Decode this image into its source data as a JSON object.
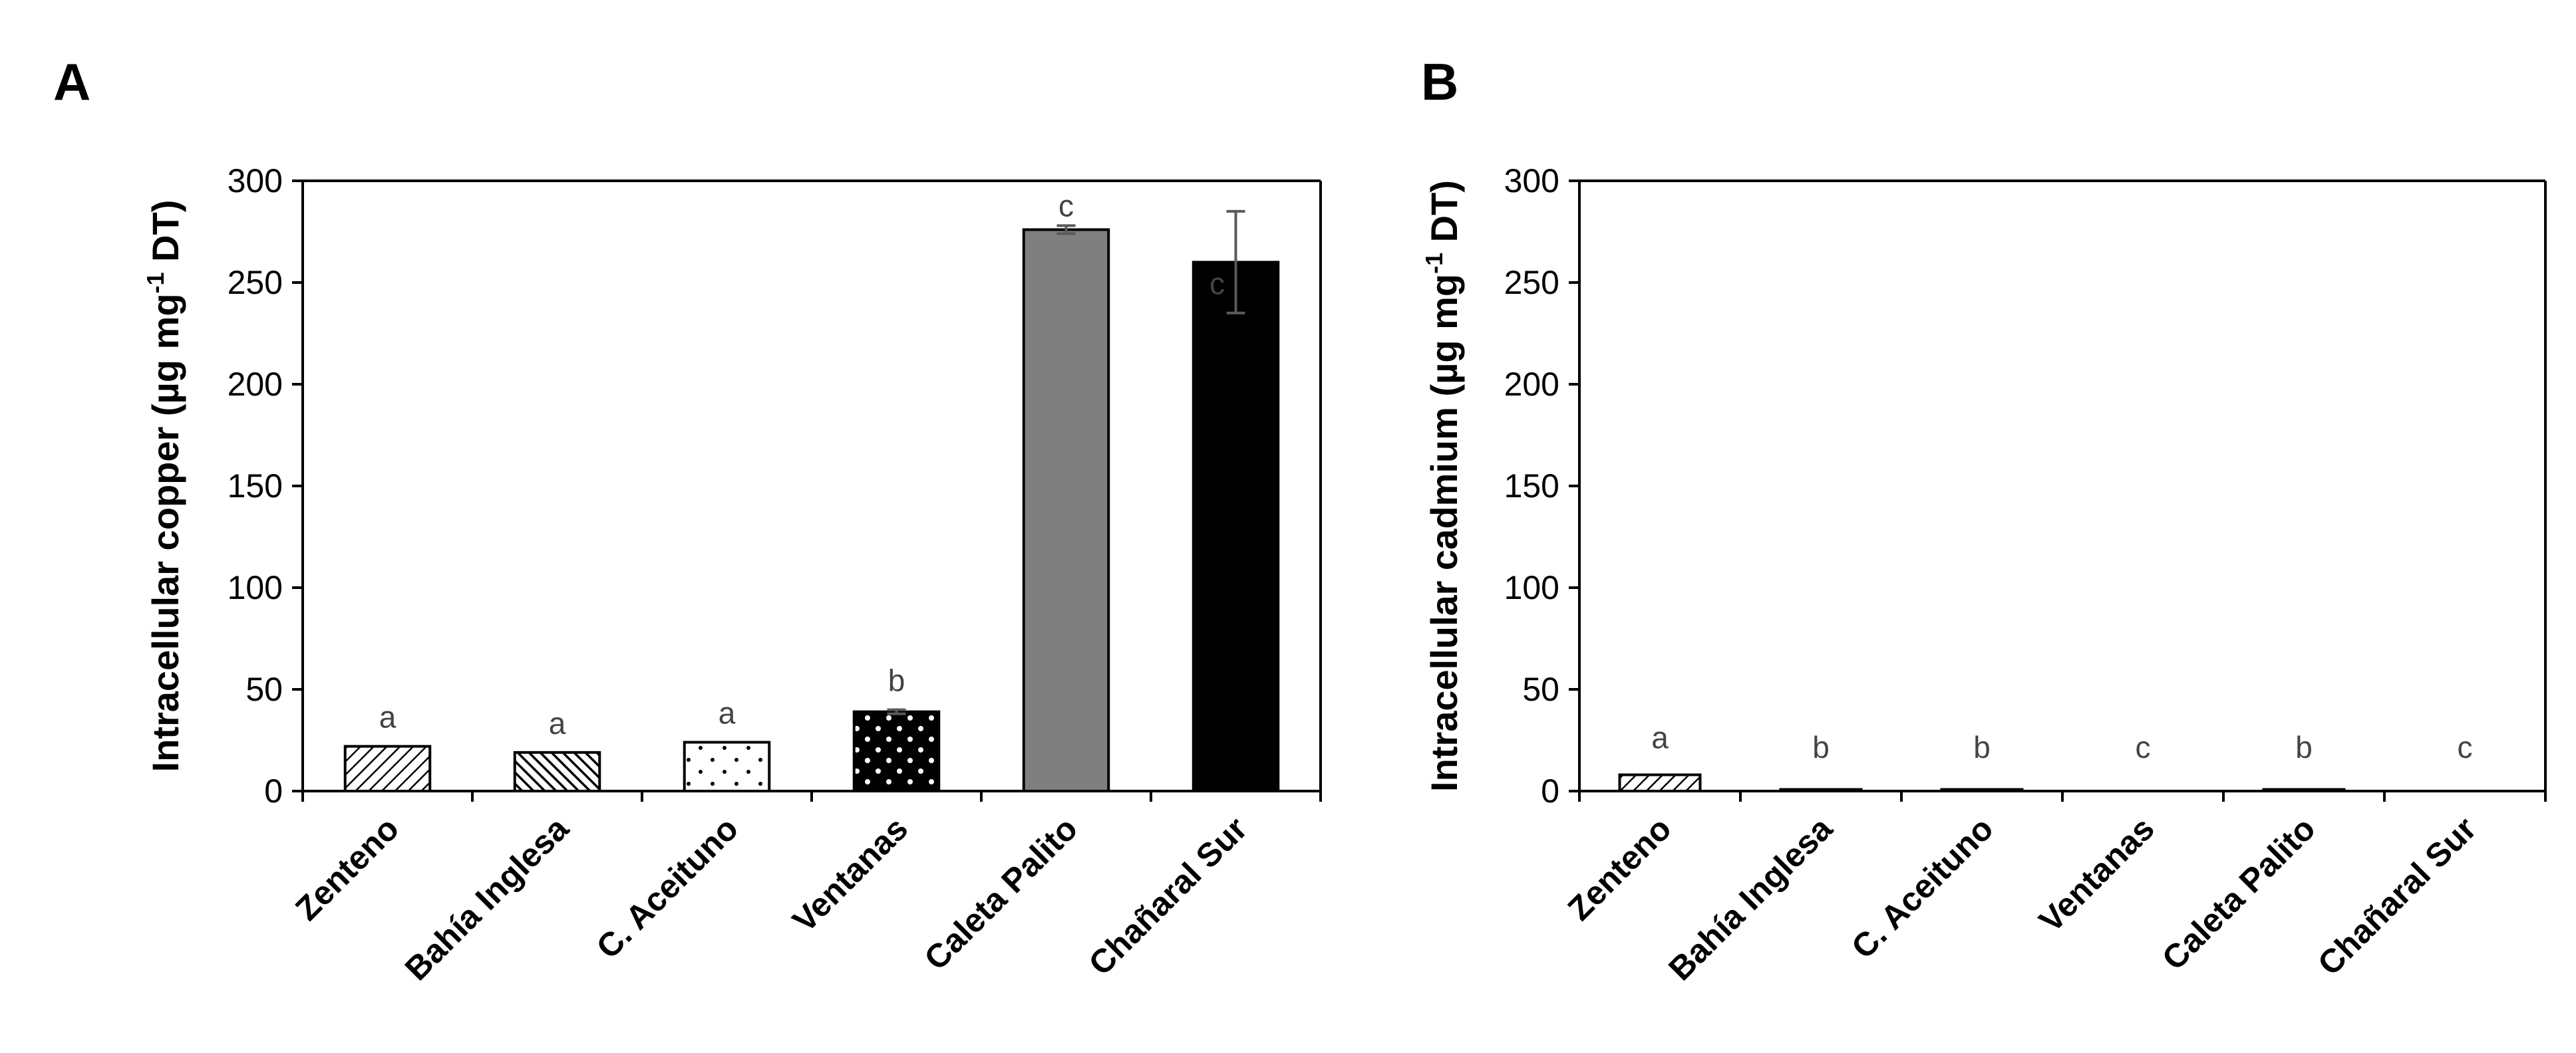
{
  "panels": {
    "A": {
      "letter": "A"
    },
    "B": {
      "letter": "B"
    }
  },
  "chart_data": [
    {
      "type": "bar",
      "panel": "A",
      "ylabel": "Intracellular copper (µg mg",
      "ylabel_sup": "-1",
      "ylabel_tail": " DT)",
      "categories": [
        "Zenteno",
        "Bahía Inglesa",
        "C. Aceituno",
        "Ventanas",
        "Caleta Palito",
        "Chañaral Sur"
      ],
      "values": [
        22,
        19,
        24,
        39,
        276,
        260
      ],
      "errors": [
        0,
        0,
        0,
        1,
        2,
        25
      ],
      "significance": [
        "a",
        "a",
        "a",
        "b",
        "c",
        "c"
      ],
      "ylim": [
        0,
        300
      ],
      "yticks": [
        0,
        50,
        100,
        150,
        200,
        250,
        300
      ],
      "bar_styles": [
        "diag-light",
        "diag-dense",
        "dots-sparse",
        "dots-black",
        "solid-gray",
        "solid-black"
      ],
      "colors": {
        "gray": "#7f7f7f",
        "black": "#000000",
        "errorbar": "#595959"
      }
    },
    {
      "type": "bar",
      "panel": "B",
      "ylabel": "Intracellular cadmium (µg mg",
      "ylabel_sup": "-1",
      "ylabel_tail": " DT)",
      "categories": [
        "Zenteno",
        "Bahía Inglesa",
        "C. Aceituno",
        "Ventanas",
        "Caleta Palito",
        "Chañaral Sur"
      ],
      "values": [
        8,
        0.8,
        0.8,
        0,
        0.8,
        0
      ],
      "errors": [
        0,
        0,
        0,
        0,
        0,
        0
      ],
      "significance": [
        "a",
        "b",
        "b",
        "c",
        "b",
        "c"
      ],
      "ylim": [
        0,
        300
      ],
      "yticks": [
        0,
        50,
        100,
        150,
        200,
        250,
        300
      ],
      "bar_styles": [
        "diag-light",
        "solid-black",
        "solid-black",
        "solid-black",
        "solid-black",
        "solid-black"
      ],
      "colors": {
        "gray": "#7f7f7f",
        "black": "#000000",
        "errorbar": "#595959"
      }
    }
  ]
}
